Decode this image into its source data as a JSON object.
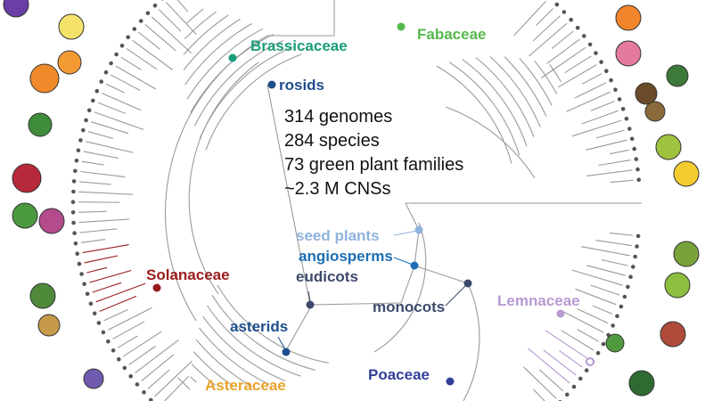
{
  "stats": {
    "genomes": "314 genomes",
    "species": "284 species",
    "families": "73 green plant families",
    "cns": "~2.3 M CNSs"
  },
  "clades": {
    "brassicaceae": {
      "label": "Brassicaceae",
      "color": "#1a9c7a"
    },
    "fabaceae": {
      "label": "Fabaceae",
      "color": "#56b84c"
    },
    "rosids": {
      "label": "rosids",
      "color": "#1f4e8c"
    },
    "seed_plants": {
      "label": "seed plants",
      "color": "#8fb3dd"
    },
    "angiosperms": {
      "label": "angiosperms",
      "color": "#1d6fb5"
    },
    "eudicots": {
      "label": "eudicots",
      "color": "#3d4a6b"
    },
    "monocots": {
      "label": "monocots",
      "color": "#3d4a6b"
    },
    "solanaceae": {
      "label": "Solanaceae",
      "color": "#9b1c1c"
    },
    "lemnaceae": {
      "label": "Lemnaceae",
      "color": "#b79ad1"
    },
    "asterids": {
      "label": "asterids",
      "color": "#1f4e8c"
    },
    "asteraceae": {
      "label": "Asteraceae",
      "color": "#e8a32b"
    },
    "poaceae": {
      "label": "Poaceae",
      "color": "#33409a"
    }
  },
  "colors": {
    "branch": "#9a9a9a",
    "tip_dot": "#555555"
  }
}
